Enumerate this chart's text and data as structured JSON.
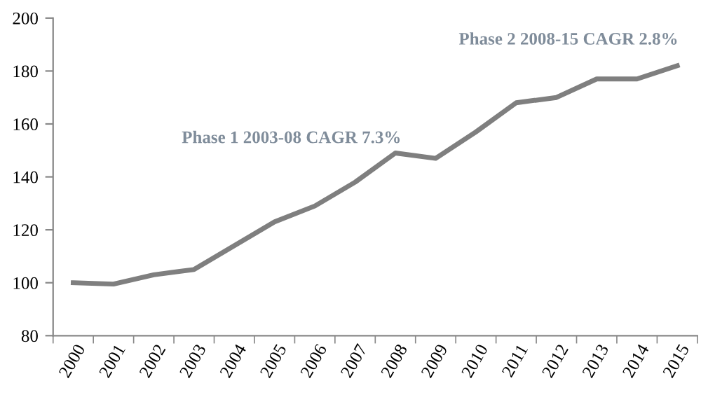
{
  "chart_data": {
    "type": "line",
    "categories": [
      "2000",
      "2001",
      "2002",
      "2003",
      "2004",
      "2005",
      "2006",
      "2007",
      "2008",
      "2009",
      "2010",
      "2011",
      "2012",
      "2013",
      "2014",
      "2015"
    ],
    "series": [
      {
        "color": "#7f7f7f",
        "values": [
          100,
          99.5,
          103,
          105,
          114,
          123,
          129,
          138,
          149,
          147,
          157,
          168,
          170,
          177,
          177,
          182
        ]
      }
    ],
    "ylim": [
      80,
      200
    ],
    "yticks": [
      80,
      100,
      120,
      140,
      160,
      180,
      200
    ],
    "grid": false,
    "legend": false,
    "marker": "none",
    "line_style": "solid",
    "annotations": [
      "Phase 1 2003-08 CAGR 7.3%",
      "Phase 2 2008-15 CAGR 2.8%"
    ]
  }
}
